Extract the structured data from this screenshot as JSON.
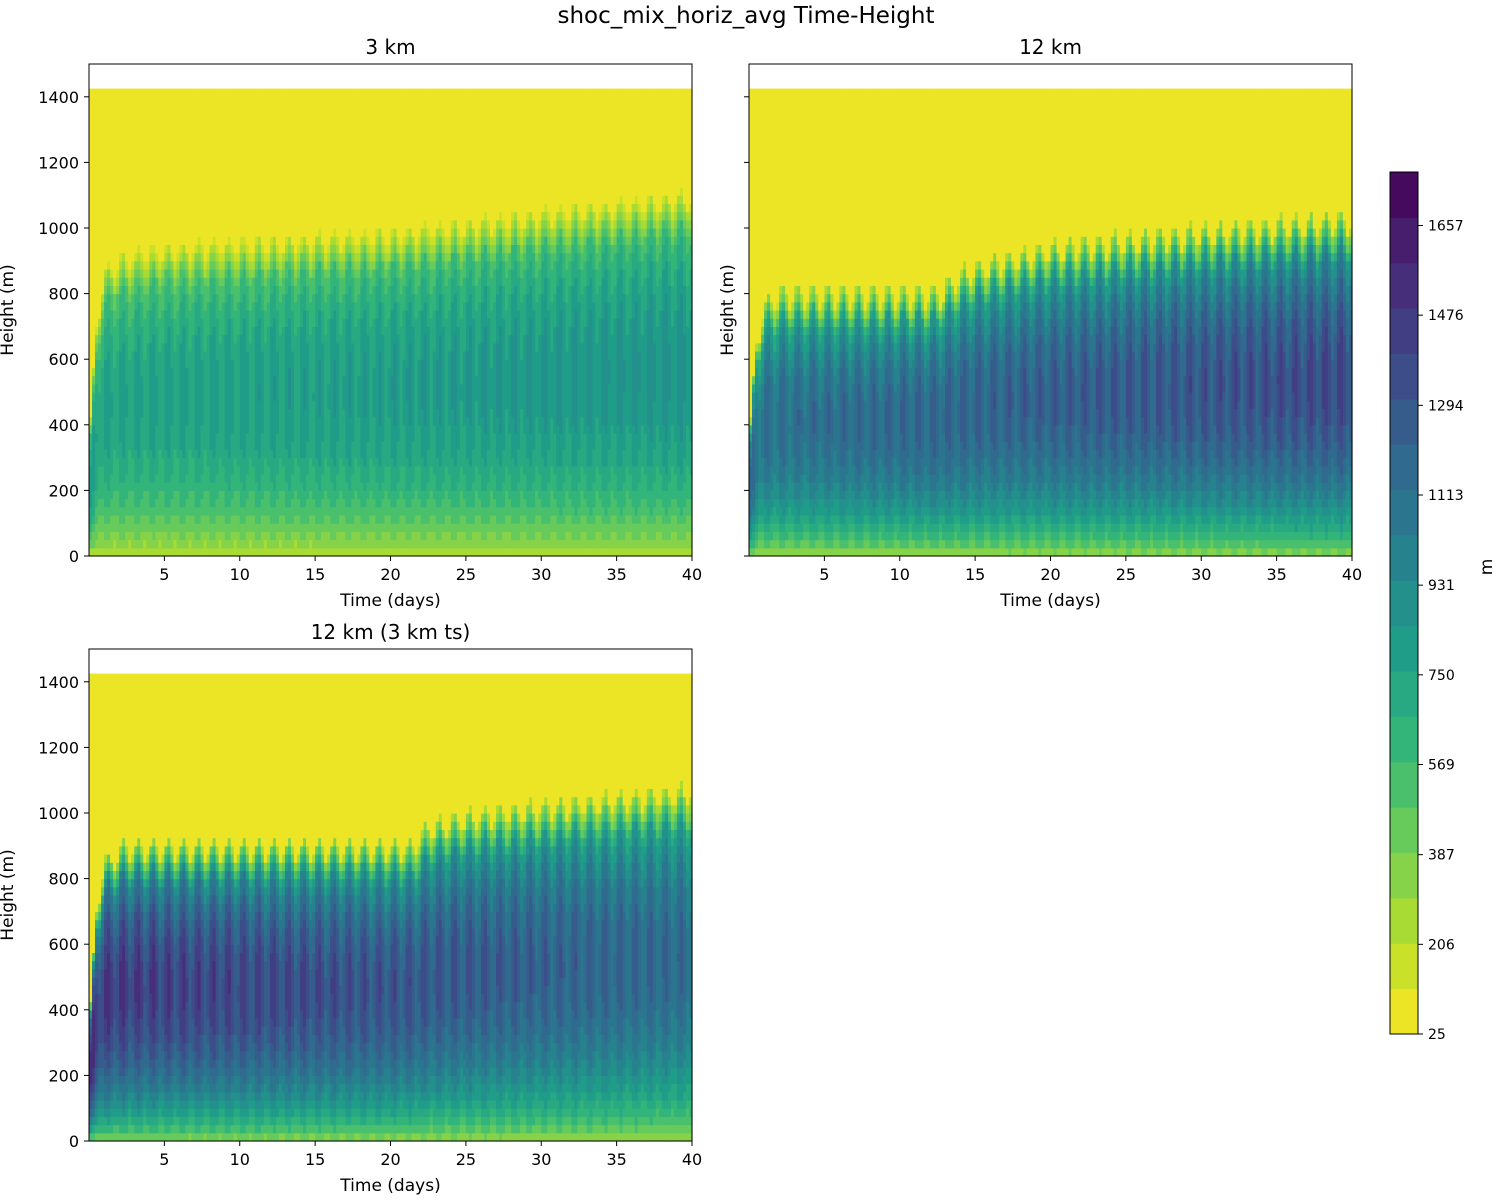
{
  "figure_title": "shoc_mix_horiz_avg Time-Height",
  "chart_data": [
    {
      "type": "heatmap",
      "title": "3 km",
      "xlabel": "Time (days)",
      "ylabel": "Height (m)",
      "xlim": [
        0,
        40
      ],
      "ylim": [
        0,
        1500
      ],
      "model_top": 1425,
      "xticks": [
        5,
        10,
        15,
        20,
        25,
        30,
        35,
        40
      ],
      "yticks": [
        0,
        200,
        400,
        600,
        800,
        1000,
        1200,
        1400
      ],
      "profile": {
        "pbl_top": [
          [
            0,
            330
          ],
          [
            0.5,
            700
          ],
          [
            1,
            860
          ],
          [
            2,
            900
          ],
          [
            5,
            930
          ],
          [
            10,
            945
          ],
          [
            20,
            975
          ],
          [
            30,
            1035
          ],
          [
            40,
            1090
          ]
        ],
        "core_value_range": [
          820,
          940
        ],
        "diurnal_amplitude": 30,
        "diurnal_period_days": 1
      }
    },
    {
      "type": "heatmap",
      "title": "12 km",
      "xlabel": "Time (days)",
      "ylabel": "Height (m)",
      "xlim": [
        0,
        40
      ],
      "ylim": [
        0,
        1500
      ],
      "model_top": 1425,
      "xticks": [
        5,
        10,
        15,
        20,
        25,
        30,
        35,
        40
      ],
      "yticks": [
        0,
        200,
        400,
        600,
        800,
        1000,
        1200,
        1400
      ],
      "profile": {
        "pbl_top": [
          [
            0,
            330
          ],
          [
            0.5,
            650
          ],
          [
            1,
            760
          ],
          [
            2,
            790
          ],
          [
            12.5,
            790
          ],
          [
            13.5,
            830
          ],
          [
            15,
            870
          ],
          [
            20,
            930
          ],
          [
            30,
            980
          ],
          [
            40,
            1020
          ]
        ],
        "core_value_range": [
          1200,
          1480
        ],
        "diurnal_amplitude": 40,
        "diurnal_period_days": 1
      }
    },
    {
      "type": "heatmap",
      "title": "12 km (3 km ts)",
      "xlabel": "Time (days)",
      "ylabel": "Height (m)",
      "xlim": [
        0,
        40
      ],
      "ylim": [
        0,
        1500
      ],
      "model_top": 1425,
      "xticks": [
        5,
        10,
        15,
        20,
        25,
        30,
        35,
        40
      ],
      "yticks": [
        0,
        200,
        400,
        600,
        800,
        1000,
        1200,
        1400
      ],
      "profile": {
        "pbl_top": [
          [
            0,
            330
          ],
          [
            0.5,
            700
          ],
          [
            1,
            840
          ],
          [
            2.5,
            890
          ],
          [
            21.5,
            890
          ],
          [
            22.5,
            950
          ],
          [
            25,
            980
          ],
          [
            30,
            1010
          ],
          [
            40,
            1060
          ]
        ],
        "core_value_range": [
          1580,
          1250
        ],
        "diurnal_amplitude": 35,
        "diurnal_period_days": 1
      }
    }
  ],
  "colorbar": {
    "label": "m",
    "min": 25,
    "max": 1765,
    "levels": 19,
    "ticks": [
      25,
      206,
      387,
      569,
      750,
      931,
      1113,
      1294,
      1476,
      1657
    ],
    "colormap": "viridis",
    "colors": [
      "#440154",
      "#482878",
      "#3e4989",
      "#31688e",
      "#26828e",
      "#1f9e89",
      "#35b779",
      "#6ece58",
      "#b5de2b",
      "#fde725"
    ]
  }
}
